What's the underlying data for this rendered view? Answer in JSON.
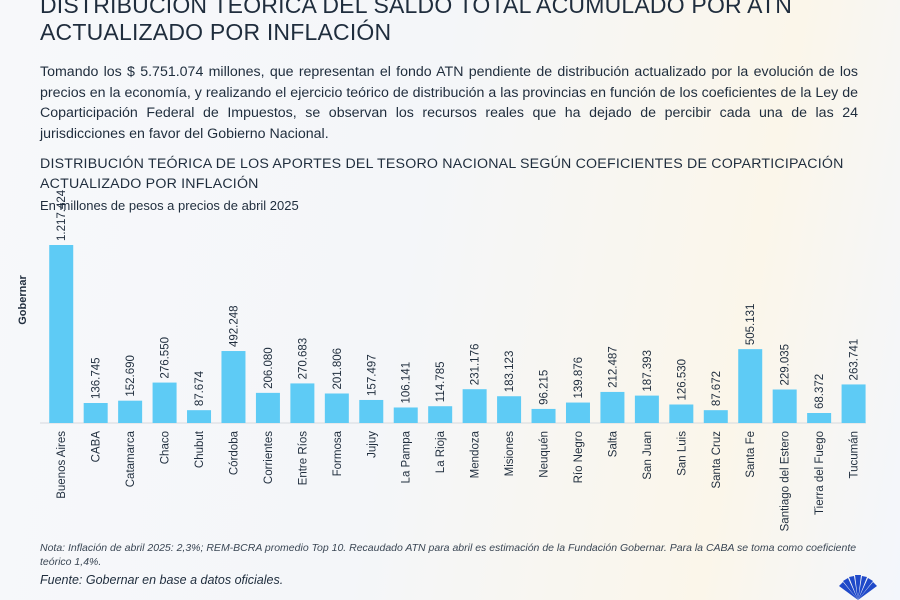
{
  "header": {
    "title": "DISTRIBUCIÓN TEÓRICA DEL SALDO TOTAL ACUMULADO POR ATN ACTUALIZADO POR INFLACIÓN",
    "intro": "Tomando los $ 5.751.074 millones, que representan el fondo ATN pendiente de distribución actualizado por la evolución de los precios en la economía, y realizando el ejercicio teórico de distribución a las provincias en función de los coeficientes de la Ley de Coparticipación Federal de Impuestos, se observan los recursos reales que ha dejado de percibir cada una de las 24 jurisdicciones en favor del Gobierno Nacional."
  },
  "brand": {
    "side_label": "Gobernar"
  },
  "chart_data": {
    "type": "bar",
    "title": "DISTRIBUCIÓN TEÓRICA DE LOS APORTES DEL TESORO NACIONAL SEGÚN COEFICIENTES DE COPARTICIPACIÓN ACTUALIZADO POR INFLACIÓN",
    "subtitle": "En millones de pesos a precios de abril 2025",
    "xlabel": "",
    "ylabel": "",
    "ylim": [
      0,
      1217424
    ],
    "grid": false,
    "legend": "none",
    "categories": [
      "Buenos Aires",
      "CABA",
      "Catamarca",
      "Chaco",
      "Chubut",
      "Córdoba",
      "Corrientes",
      "Entre Ríos",
      "Formosa",
      "Jujuy",
      "La Pampa",
      "La Rioja",
      "Mendoza",
      "Misiones",
      "Neuquén",
      "Río Negro",
      "Salta",
      "San Juan",
      "San Luis",
      "Santa Cruz",
      "Santa Fe",
      "Santiago del Estero",
      "Tierra del Fuego",
      "Tucumán"
    ],
    "values": [
      1217424,
      136745,
      152690,
      276550,
      87674,
      492248,
      206080,
      270683,
      201806,
      157497,
      106141,
      114785,
      231176,
      183123,
      96215,
      139876,
      212487,
      187393,
      126530,
      87672,
      505131,
      229035,
      68372,
      263741
    ],
    "value_labels": [
      "1.217.424",
      "136.745",
      "152.690",
      "276.550",
      "87.674",
      "492.248",
      "206.080",
      "270.683",
      "201.806",
      "157.497",
      "106.141",
      "114.785",
      "231.176",
      "183.123",
      "96.215",
      "139.876",
      "212.487",
      "187.393",
      "126.530",
      "87.672",
      "505.131",
      "229.035",
      "68.372",
      "263.741"
    ],
    "bar_color": "#5ecbf5"
  },
  "footer": {
    "note": "Nota: Inflación de abril 2025: 2,3%; REM-BCRA promedio Top 10. Recaudado ATN para abril es estimación de la Fundación Gobernar. Para la CABA se toma como coeficiente teórico 1,4%.",
    "source": "Fuente: Gobernar en base a datos oficiales."
  }
}
